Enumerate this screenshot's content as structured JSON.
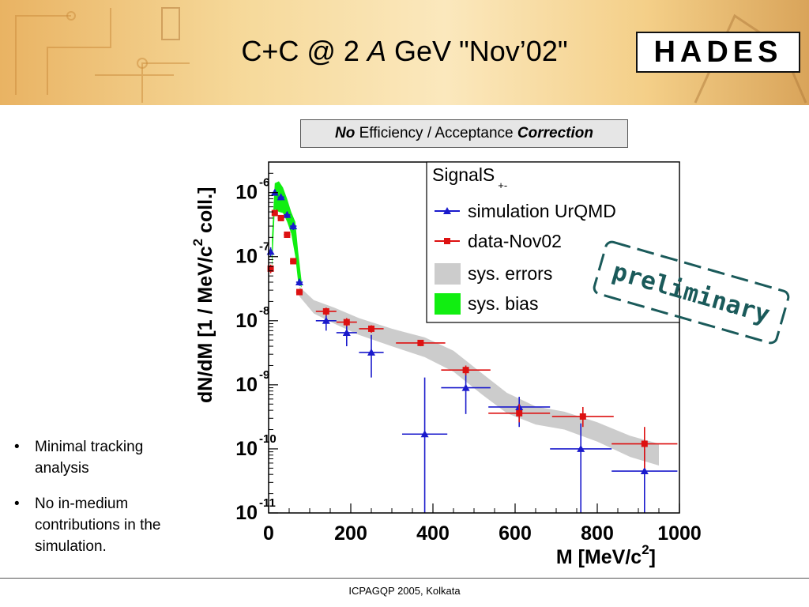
{
  "slide": {
    "title_prefix": "C+C @ 2 ",
    "title_italic": "A",
    "title_suffix": " GeV  \"Nov’02\"",
    "logo_text": "HADES",
    "note_part1": "No",
    "note_part2": " Efficiency / Acceptance ",
    "note_part3": "Correction",
    "stamp_text": "preliminary",
    "bullets": [
      "Minimal tracking analysis",
      "No in-medium contributions in the simulation."
    ],
    "footer": "ICPAGQP 2005, Kolkata"
  },
  "colors": {
    "simulation": "#1a1acc",
    "data": "#dd1111",
    "sys_errors": "#cccccc",
    "sys_bias": "#11ee11",
    "stamp": "#1a5a5a"
  },
  "chart_data": {
    "type": "scatter",
    "x_range": [
      0,
      1000
    ],
    "y_range": [
      1e-11,
      3e-06
    ],
    "log_y": true,
    "x_ticks": [
      "0",
      "200",
      "400",
      "600",
      "800",
      "1000"
    ],
    "y_ticks": [
      {
        "value": 1e-06,
        "base": "10",
        "exp": "-6"
      },
      {
        "value": 1e-07,
        "base": "10",
        "exp": "-7"
      },
      {
        "value": 1e-08,
        "base": "10",
        "exp": "-8"
      },
      {
        "value": 1e-09,
        "base": "10",
        "exp": "-9"
      },
      {
        "value": 1e-10,
        "base": "10",
        "exp": "-10"
      },
      {
        "value": 1e-11,
        "base": "10",
        "exp": "-11"
      }
    ],
    "xlabel": "M   [MeV/c",
    "xlabel_exp": "2",
    "xlabel_end": "]",
    "ylabel": "dN/dM  [1  /  MeV/c",
    "ylabel_exp": "2",
    "ylabel_end": "  coll.]",
    "legend": {
      "title": "SignalS",
      "title_sub": "+-",
      "entries": [
        "simulation UrQMD",
        "data-Nov02",
        "sys. errors",
        "sys. bias"
      ],
      "position": "top-right"
    },
    "series": [
      {
        "name": "simulation UrQMD",
        "points": [
          {
            "x": 5,
            "y": 1.2e-07,
            "xerr": 5,
            "ylo": 1e-07,
            "yhi": 1.4e-07
          },
          {
            "x": 15,
            "y": 1e-06,
            "xerr": 5,
            "ylo": 9e-07,
            "yhi": 1.1e-06
          },
          {
            "x": 30,
            "y": 8.5e-07,
            "xerr": 8,
            "ylo": 7.6e-07,
            "yhi": 9.4e-07
          },
          {
            "x": 45,
            "y": 4.5e-07,
            "xerr": 8,
            "ylo": 4e-07,
            "yhi": 5e-07
          },
          {
            "x": 60,
            "y": 3e-07,
            "xerr": 8,
            "ylo": 2.6e-07,
            "yhi": 3.4e-07
          },
          {
            "x": 75,
            "y": 4e-08,
            "xerr": 8,
            "ylo": 3.5e-08,
            "yhi": 4.5e-08
          },
          {
            "x": 140,
            "y": 1e-08,
            "xerr": 25,
            "ylo": 7e-09,
            "yhi": 1.4e-08
          },
          {
            "x": 190,
            "y": 6.5e-09,
            "xerr": 25,
            "ylo": 4e-09,
            "yhi": 1e-08
          },
          {
            "x": 250,
            "y": 3.2e-09,
            "xerr": 30,
            "ylo": 1.3e-09,
            "yhi": 6e-09
          },
          {
            "x": 380,
            "y": 1.7e-10,
            "xerr": 55,
            "ylo": 1e-11,
            "yhi": 1.3e-09
          },
          {
            "x": 480,
            "y": 9e-10,
            "xerr": 60,
            "ylo": 3.5e-10,
            "yhi": 1.7e-09
          },
          {
            "x": 610,
            "y": 4.5e-10,
            "xerr": 75,
            "ylo": 2.2e-10,
            "yhi": 6.5e-10
          },
          {
            "x": 760,
            "y": 1e-10,
            "xerr": 75,
            "ylo": 1e-11,
            "yhi": 2.5e-10
          },
          {
            "x": 915,
            "y": 4.5e-11,
            "xerr": 80,
            "ylo": 1e-11,
            "yhi": 1e-10
          }
        ]
      },
      {
        "name": "data-Nov02",
        "points": [
          {
            "x": 5,
            "y": 6.5e-08,
            "xerr": 5,
            "ylo": 5.5e-08,
            "yhi": 7.5e-08
          },
          {
            "x": 15,
            "y": 4.8e-07,
            "xerr": 5,
            "ylo": 4.3e-07,
            "yhi": 5.3e-07
          },
          {
            "x": 30,
            "y": 4e-07,
            "xerr": 8,
            "ylo": 3.6e-07,
            "yhi": 4.4e-07
          },
          {
            "x": 45,
            "y": 2.2e-07,
            "xerr": 8,
            "ylo": 2e-07,
            "yhi": 2.4e-07
          },
          {
            "x": 60,
            "y": 8.5e-08,
            "xerr": 8,
            "ylo": 7.7e-08,
            "yhi": 9.3e-08
          },
          {
            "x": 75,
            "y": 2.8e-08,
            "xerr": 8,
            "ylo": 2.5e-08,
            "yhi": 3.1e-08
          },
          {
            "x": 140,
            "y": 1.4e-08,
            "xerr": 25,
            "ylo": 1.2e-08,
            "yhi": 1.6e-08
          },
          {
            "x": 190,
            "y": 9.5e-09,
            "xerr": 25,
            "ylo": 8.2e-09,
            "yhi": 1.1e-08
          },
          {
            "x": 250,
            "y": 7.5e-09,
            "xerr": 30,
            "ylo": 6.5e-09,
            "yhi": 8.5e-09
          },
          {
            "x": 370,
            "y": 4.5e-09,
            "xerr": 60,
            "ylo": 4e-09,
            "yhi": 5e-09
          },
          {
            "x": 480,
            "y": 1.7e-09,
            "xerr": 60,
            "ylo": 1.4e-09,
            "yhi": 2e-09
          },
          {
            "x": 610,
            "y": 3.6e-10,
            "xerr": 75,
            "ylo": 2.6e-10,
            "yhi": 5e-10
          },
          {
            "x": 765,
            "y": 3.2e-10,
            "xerr": 75,
            "ylo": 2.2e-10,
            "yhi": 4.5e-10
          },
          {
            "x": 915,
            "y": 1.2e-10,
            "xerr": 80,
            "ylo": 5e-11,
            "yhi": 2.2e-10
          }
        ]
      }
    ],
    "sys_errors_band": [
      {
        "x": 75,
        "lo": 2.4e-08,
        "hi": 3.4e-08
      },
      {
        "x": 110,
        "lo": 1.3e-08,
        "hi": 2.1e-08
      },
      {
        "x": 160,
        "lo": 9e-09,
        "hi": 1.6e-08
      },
      {
        "x": 220,
        "lo": 6e-09,
        "hi": 1.1e-08
      },
      {
        "x": 300,
        "lo": 4e-09,
        "hi": 7.5e-09
      },
      {
        "x": 380,
        "lo": 2.7e-09,
        "hi": 5.5e-09
      },
      {
        "x": 450,
        "lo": 1.6e-09,
        "hi": 3.4e-09
      },
      {
        "x": 520,
        "lo": 7e-10,
        "hi": 1.5e-09
      },
      {
        "x": 580,
        "lo": 3.6e-10,
        "hi": 7.5e-10
      },
      {
        "x": 650,
        "lo": 2.4e-10,
        "hi": 4.6e-10
      },
      {
        "x": 720,
        "lo": 2e-10,
        "hi": 3.8e-10
      },
      {
        "x": 800,
        "lo": 1.3e-10,
        "hi": 2.6e-10
      },
      {
        "x": 880,
        "lo": 7.5e-11,
        "hi": 1.6e-10
      },
      {
        "x": 950,
        "lo": 5.5e-11,
        "hi": 1.2e-10
      }
    ],
    "sys_bias_band": [
      {
        "x": 8,
        "lo": 6e-08,
        "hi": 2e-07
      },
      {
        "x": 15,
        "lo": 5.5e-07,
        "hi": 1.4e-06
      },
      {
        "x": 25,
        "lo": 5e-07,
        "hi": 1.5e-06
      },
      {
        "x": 35,
        "lo": 4.8e-07,
        "hi": 1.2e-06
      },
      {
        "x": 45,
        "lo": 3.5e-07,
        "hi": 8e-07
      },
      {
        "x": 55,
        "lo": 2.3e-07,
        "hi": 5e-07
      },
      {
        "x": 65,
        "lo": 1e-07,
        "hi": 3.5e-07
      },
      {
        "x": 72,
        "lo": 4e-08,
        "hi": 1.2e-07
      },
      {
        "x": 80,
        "lo": 3.3e-08,
        "hi": 4.3e-08
      }
    ]
  }
}
